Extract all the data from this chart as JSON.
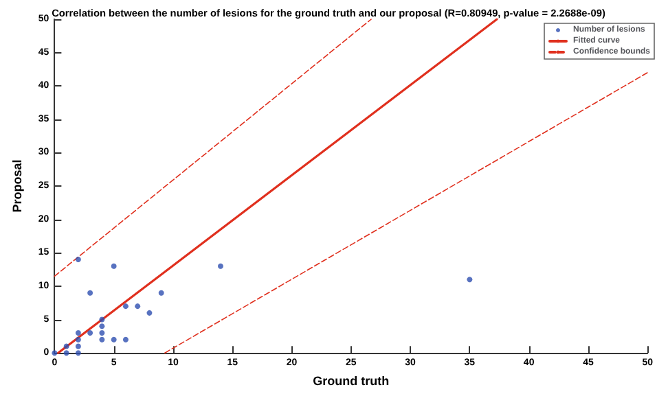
{
  "chart_data": {
    "type": "scatter",
    "title": "Correlation between the number of lesions for the ground truth and our proposal (R=0.80949, p-value = 2.2688e-09)",
    "xlabel": "Ground truth",
    "ylabel": "Proposal",
    "xlim": [
      0,
      50
    ],
    "xticks": [
      0,
      5,
      10,
      15,
      20,
      25,
      30,
      35,
      40,
      45,
      50
    ],
    "ylim": [
      0,
      50
    ],
    "yticks": [
      0,
      5,
      10,
      15,
      20,
      25,
      30,
      35,
      40,
      45,
      50
    ],
    "grid": false,
    "legend": "top right",
    "series": [
      {
        "name": "Number of lesions",
        "type": "scatter",
        "marker": "circle",
        "color": "#2e4fb0",
        "x": [
          0,
          1,
          1,
          2,
          2,
          2,
          2,
          2,
          3,
          3,
          4,
          4,
          4,
          4,
          5,
          5,
          6,
          6,
          7,
          8,
          9,
          14,
          35
        ],
        "values": [
          0,
          0,
          1,
          0,
          1,
          2,
          3,
          14,
          3,
          9,
          2,
          3,
          4,
          5,
          2,
          13,
          2,
          7,
          7,
          6,
          9,
          13,
          11
        ]
      },
      {
        "name": "Fitted curve",
        "type": "line",
        "marker": "none",
        "line_style": "solid",
        "color": "#e0301e",
        "x": [
          0.3,
          37.3
        ],
        "values": [
          0,
          50
        ]
      },
      {
        "name": "Confidence bounds",
        "type": "line",
        "marker": "none",
        "line_style": "dashed",
        "color": "#e0301e",
        "x": [
          0,
          26.7
        ],
        "values": [
          11.5,
          50
        ]
      },
      {
        "type": "line",
        "marker": "none",
        "line_style": "dashed",
        "color": "#e0301e",
        "x": [
          9.3,
          50
        ],
        "values": [
          0,
          42
        ]
      }
    ]
  }
}
